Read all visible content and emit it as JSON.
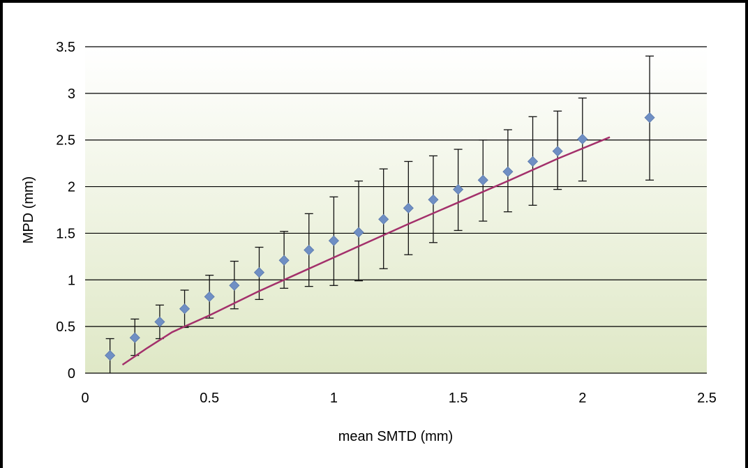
{
  "chart_data": {
    "type": "scatter",
    "title": "",
    "xlabel": "mean SMTD (mm)",
    "ylabel": "MPD (mm)",
    "xlim": [
      0,
      2.5
    ],
    "ylim": [
      0,
      3.5
    ],
    "xticks": [
      "0",
      "0.5",
      "1",
      "1.5",
      "2",
      "2.5"
    ],
    "yticks": [
      "0",
      "0.5",
      "1",
      "1.5",
      "2",
      "2.5",
      "3",
      "3.5"
    ],
    "grid": "horizontal",
    "legend": "none",
    "background": "gradient light green to white",
    "series": [
      {
        "marker": "diamond",
        "color": "#6f8fc4",
        "points": [
          {
            "x": 0.1,
            "y": 0.19,
            "lo": 0.0,
            "hi": 0.37
          },
          {
            "x": 0.2,
            "y": 0.38,
            "lo": 0.19,
            "hi": 0.58
          },
          {
            "x": 0.3,
            "y": 0.55,
            "lo": 0.37,
            "hi": 0.73
          },
          {
            "x": 0.4,
            "y": 0.69,
            "lo": 0.49,
            "hi": 0.89
          },
          {
            "x": 0.5,
            "y": 0.82,
            "lo": 0.59,
            "hi": 1.05
          },
          {
            "x": 0.6,
            "y": 0.94,
            "lo": 0.69,
            "hi": 1.2
          },
          {
            "x": 0.7,
            "y": 1.08,
            "lo": 0.79,
            "hi": 1.35
          },
          {
            "x": 0.8,
            "y": 1.21,
            "lo": 0.91,
            "hi": 1.52
          },
          {
            "x": 0.9,
            "y": 1.32,
            "lo": 0.93,
            "hi": 1.71
          },
          {
            "x": 1.0,
            "y": 1.42,
            "lo": 0.94,
            "hi": 1.89
          },
          {
            "x": 1.1,
            "y": 1.51,
            "lo": 0.99,
            "hi": 2.06
          },
          {
            "x": 1.2,
            "y": 1.65,
            "lo": 1.12,
            "hi": 2.19
          },
          {
            "x": 1.3,
            "y": 1.77,
            "lo": 1.27,
            "hi": 2.27
          },
          {
            "x": 1.4,
            "y": 1.86,
            "lo": 1.4,
            "hi": 2.33
          },
          {
            "x": 1.5,
            "y": 1.97,
            "lo": 1.53,
            "hi": 2.4
          },
          {
            "x": 1.6,
            "y": 2.07,
            "lo": 1.63,
            "hi": 2.5
          },
          {
            "x": 1.7,
            "y": 2.16,
            "lo": 1.73,
            "hi": 2.61
          },
          {
            "x": 1.8,
            "y": 2.27,
            "lo": 1.8,
            "hi": 2.75
          },
          {
            "x": 1.9,
            "y": 2.38,
            "lo": 1.97,
            "hi": 2.81
          },
          {
            "x": 2.0,
            "y": 2.51,
            "lo": 2.06,
            "hi": 2.95
          },
          {
            "x": 2.27,
            "y": 2.74,
            "lo": 2.07,
            "hi": 3.4
          }
        ]
      }
    ],
    "fit_line": {
      "color": "#a3306b",
      "points": [
        {
          "x": 0.15,
          "y": 0.09
        },
        {
          "x": 0.25,
          "y": 0.27
        },
        {
          "x": 0.35,
          "y": 0.44
        },
        {
          "x": 0.5,
          "y": 0.62
        },
        {
          "x": 0.7,
          "y": 0.88
        },
        {
          "x": 0.9,
          "y": 1.12
        },
        {
          "x": 1.1,
          "y": 1.36
        },
        {
          "x": 1.3,
          "y": 1.6
        },
        {
          "x": 1.5,
          "y": 1.83
        },
        {
          "x": 1.7,
          "y": 2.06
        },
        {
          "x": 1.9,
          "y": 2.3
        },
        {
          "x": 2.11,
          "y": 2.53
        }
      ]
    }
  }
}
